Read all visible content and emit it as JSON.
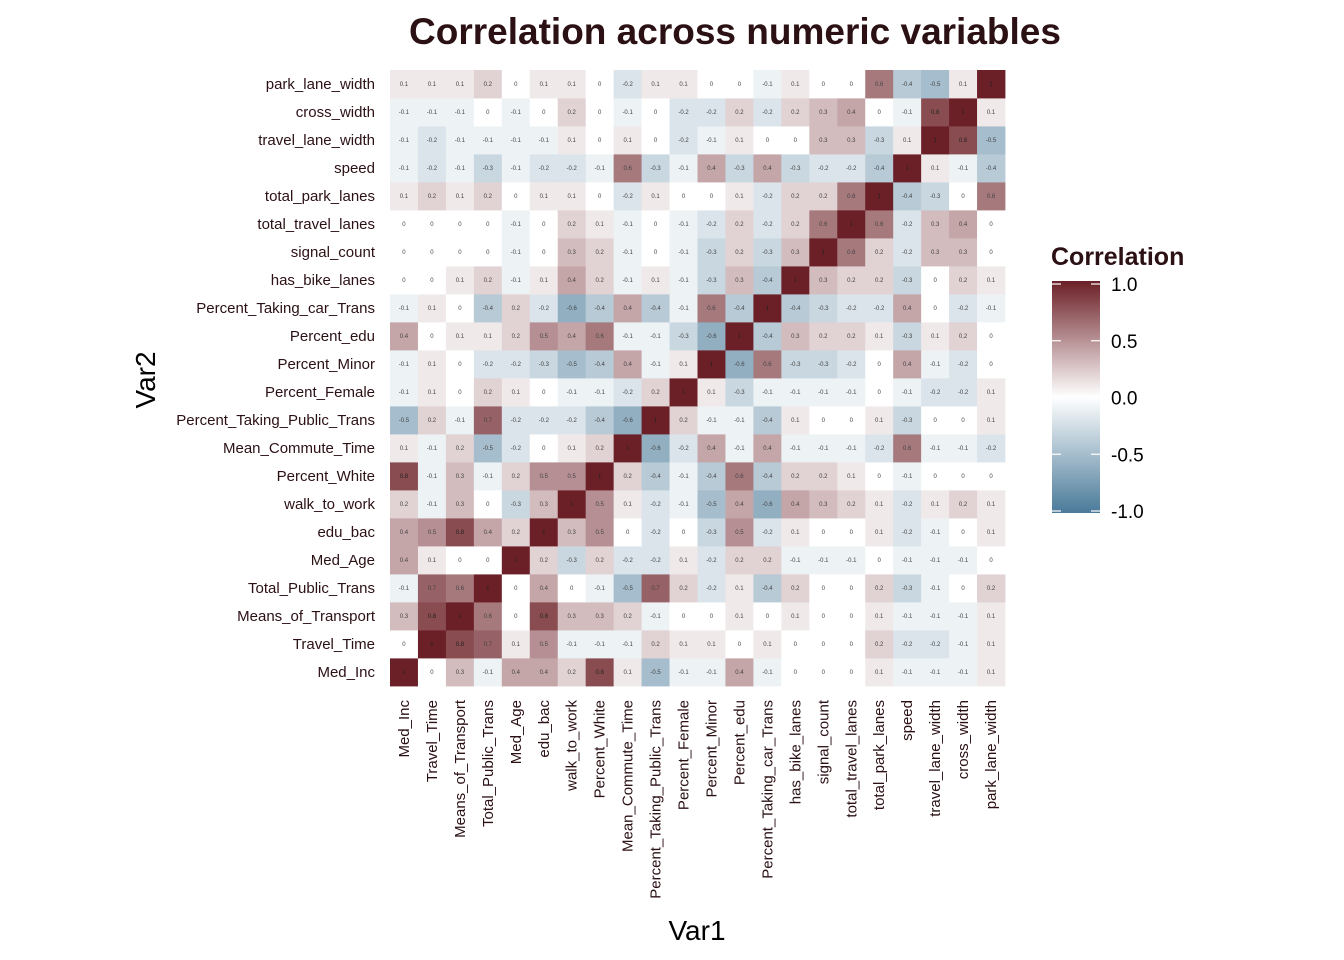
{
  "chart_data": {
    "type": "heatmap",
    "title": "Correlation across numeric variables",
    "xlabel": "Var1",
    "ylabel": "Var2",
    "legend": {
      "title": "Correlation",
      "placement": "right",
      "range": [
        -1,
        1
      ],
      "ticks": [
        "1.0",
        "0.5",
        "0.0",
        "-0.5",
        "-1.0"
      ],
      "low_color": "#4a7a99",
      "mid_color": "#ffffff",
      "high_color": "#6b1f26"
    },
    "variables": [
      "Med_Inc",
      "Travel_Time",
      "Means_of_Transport",
      "Total_Public_Trans",
      "Med_Age",
      "edu_bac",
      "walk_to_work",
      "Percent_White",
      "Mean_Commute_Time",
      "Percent_Taking_Public_Trans",
      "Percent_Female",
      "Percent_Minor",
      "Percent_edu",
      "Percent_Taking_car_Trans",
      "has_bike_lanes",
      "signal_count",
      "total_travel_lanes",
      "total_park_lanes",
      "speed",
      "travel_lane_width",
      "cross_width",
      "park_lane_width"
    ],
    "matrix": [
      [
        1,
        0,
        0.3,
        -0.1,
        0.4,
        0.4,
        0.2,
        0.8,
        0.1,
        -0.5,
        -0.1,
        -0.1,
        0.4,
        -0.1,
        0,
        0,
        0,
        0.1,
        -0.1,
        -0.1,
        -0.1,
        0.1
      ],
      [
        0,
        1,
        0.8,
        0.7,
        0.1,
        0.5,
        -0.1,
        -0.1,
        -0.1,
        0.2,
        0.1,
        0.1,
        0,
        0.1,
        0,
        0,
        0,
        0.2,
        -0.2,
        -0.2,
        -0.1,
        0.1
      ],
      [
        0.3,
        0.8,
        1,
        0.6,
        0,
        0.8,
        0.3,
        0.3,
        0.2,
        -0.1,
        0,
        0,
        0.1,
        0,
        0.1,
        0,
        0,
        0.1,
        -0.1,
        -0.1,
        -0.1,
        0.1
      ],
      [
        -0.1,
        0.7,
        0.6,
        1,
        0,
        0.4,
        0,
        -0.1,
        -0.5,
        0.7,
        0.2,
        -0.2,
        0.1,
        -0.4,
        0.2,
        0,
        0,
        0.2,
        -0.3,
        -0.1,
        0,
        0.2
      ],
      [
        0.4,
        0.1,
        0,
        0,
        1,
        0.2,
        -0.3,
        0.2,
        -0.2,
        -0.2,
        0.1,
        -0.2,
        0.2,
        0.2,
        -0.1,
        -0.1,
        -0.1,
        0,
        -0.1,
        -0.1,
        -0.1,
        0
      ],
      [
        0.4,
        0.5,
        0.8,
        0.4,
        0.2,
        1,
        0.3,
        0.5,
        0,
        -0.2,
        0,
        -0.3,
        0.5,
        -0.2,
        0.1,
        0,
        0,
        0.1,
        -0.2,
        -0.1,
        0,
        0.1
      ],
      [
        0.2,
        -0.1,
        0.3,
        0,
        -0.3,
        0.3,
        1,
        0.5,
        0.1,
        -0.2,
        -0.1,
        -0.5,
        0.4,
        -0.6,
        0.4,
        0.3,
        0.2,
        0.1,
        -0.2,
        0.1,
        0.2,
        0.1
      ],
      [
        0.8,
        -0.1,
        0.3,
        -0.1,
        0.2,
        0.5,
        0.5,
        1,
        0.2,
        -0.4,
        -0.1,
        -0.4,
        0.6,
        -0.4,
        0.2,
        0.2,
        0.1,
        0,
        -0.1,
        0,
        0,
        0
      ],
      [
        0.1,
        -0.1,
        0.2,
        -0.5,
        -0.2,
        0,
        0.1,
        0.2,
        1,
        -0.6,
        -0.2,
        0.4,
        -0.1,
        0.4,
        -0.1,
        -0.1,
        -0.1,
        -0.2,
        0.6,
        -0.1,
        -0.1,
        -0.2
      ],
      [
        -0.5,
        0.2,
        -0.1,
        0.7,
        -0.2,
        -0.2,
        -0.2,
        -0.4,
        -0.6,
        1,
        0.2,
        -0.1,
        -0.1,
        -0.4,
        0.1,
        0,
        0,
        0.1,
        -0.3,
        0,
        0,
        0.1
      ],
      [
        -0.1,
        0.1,
        0,
        0.2,
        0.1,
        0,
        -0.1,
        -0.1,
        -0.2,
        0.2,
        1,
        0.1,
        -0.3,
        -0.1,
        -0.1,
        -0.1,
        -0.1,
        0,
        -0.1,
        -0.2,
        -0.2,
        0.1
      ],
      [
        -0.1,
        0.1,
        0,
        -0.2,
        -0.2,
        -0.3,
        -0.5,
        -0.4,
        0.4,
        -0.1,
        0.1,
        1,
        -0.6,
        0.6,
        -0.3,
        -0.3,
        -0.2,
        0,
        0.4,
        -0.1,
        -0.2,
        0
      ],
      [
        0.4,
        0,
        0.1,
        0.1,
        0.2,
        0.5,
        0.4,
        0.6,
        -0.1,
        -0.1,
        -0.3,
        -0.6,
        1,
        -0.4,
        0.3,
        0.2,
        0.2,
        0.1,
        -0.3,
        0.1,
        0.2,
        0
      ],
      [
        -0.1,
        0.1,
        0,
        -0.4,
        0.2,
        -0.2,
        -0.6,
        -0.4,
        0.4,
        -0.4,
        -0.1,
        0.6,
        -0.4,
        1,
        -0.4,
        -0.3,
        -0.2,
        -0.2,
        0.4,
        0,
        -0.2,
        -0.1
      ],
      [
        0,
        0,
        0.1,
        0.2,
        -0.1,
        0.1,
        0.4,
        0.2,
        -0.1,
        0.1,
        -0.1,
        -0.3,
        0.3,
        -0.4,
        1,
        0.3,
        0.2,
        0.2,
        -0.3,
        0,
        0.2,
        0.1
      ],
      [
        0,
        0,
        0,
        0,
        -0.1,
        0,
        0.3,
        0.2,
        -0.1,
        0,
        -0.1,
        -0.3,
        0.2,
        -0.3,
        0.3,
        1,
        0.6,
        0.2,
        -0.2,
        0.3,
        0.3,
        0
      ],
      [
        0,
        0,
        0,
        0,
        -0.1,
        0,
        0.2,
        0.1,
        -0.1,
        0,
        -0.1,
        -0.2,
        0.2,
        -0.2,
        0.2,
        0.6,
        1,
        0.6,
        -0.2,
        0.3,
        0.4,
        0
      ],
      [
        0.1,
        0.2,
        0.1,
        0.2,
        0,
        0.1,
        0.1,
        0,
        -0.2,
        0.1,
        0,
        0,
        0.1,
        -0.2,
        0.2,
        0.2,
        0.6,
        1,
        -0.4,
        -0.3,
        0,
        0.6
      ],
      [
        -0.1,
        -0.2,
        -0.1,
        -0.3,
        -0.1,
        -0.2,
        -0.2,
        -0.1,
        0.6,
        -0.3,
        -0.1,
        0.4,
        -0.3,
        0.4,
        -0.3,
        -0.2,
        -0.2,
        -0.4,
        1,
        0.1,
        -0.1,
        -0.4
      ],
      [
        -0.1,
        -0.2,
        -0.1,
        -0.1,
        -0.1,
        -0.1,
        0.1,
        0,
        0.1,
        0,
        -0.2,
        -0.1,
        0.1,
        0,
        0,
        0.3,
        0.3,
        -0.3,
        0.1,
        1,
        0.8,
        -0.5
      ],
      [
        -0.1,
        -0.1,
        -0.1,
        0,
        -0.1,
        0,
        0.2,
        0,
        -0.1,
        0,
        -0.2,
        -0.2,
        0.2,
        -0.2,
        0.2,
        0.3,
        0.4,
        0,
        -0.1,
        0.8,
        1,
        0.1
      ],
      [
        0.1,
        0.1,
        0.1,
        0.2,
        0,
        0.1,
        0.1,
        0,
        -0.2,
        0.1,
        0.1,
        0,
        0,
        -0.1,
        0.1,
        0,
        0,
        0.6,
        -0.4,
        -0.5,
        0.1,
        1
      ]
    ]
  }
}
